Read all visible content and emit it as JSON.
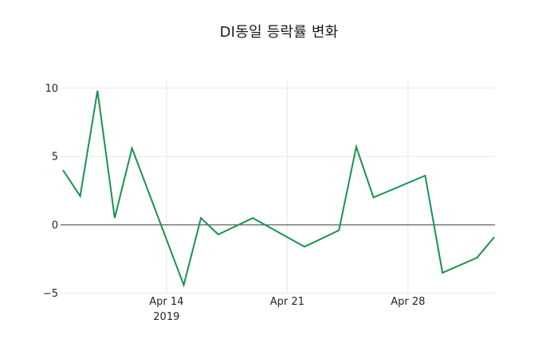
{
  "chart_data": {
    "type": "line",
    "title": "DI동일 등락률 변화",
    "xlabel": "",
    "ylabel": "",
    "legend": "none",
    "grid": true,
    "x_axis": {
      "tick_year": "2019",
      "ticks": [
        {
          "label": "Apr 14",
          "sublabel": "2019",
          "day_offset": 6
        },
        {
          "label": "Apr 21",
          "sublabel": "",
          "day_offset": 13
        },
        {
          "label": "Apr 28",
          "sublabel": "",
          "day_offset": 20
        }
      ],
      "range_days": [
        0,
        25
      ]
    },
    "y_axis": {
      "ticks": [
        10,
        5,
        0,
        -5
      ],
      "range": [
        -5.05,
        10.6
      ],
      "zero_line": true
    },
    "series": [
      {
        "color": "#17934f",
        "points": [
          {
            "date": "2019-04-08",
            "day_offset": 0,
            "value": 4.0
          },
          {
            "date": "2019-04-09",
            "day_offset": 1,
            "value": 2.1
          },
          {
            "date": "2019-04-10",
            "day_offset": 2,
            "value": 9.8
          },
          {
            "date": "2019-04-11",
            "day_offset": 3,
            "value": 0.5
          },
          {
            "date": "2019-04-12",
            "day_offset": 4,
            "value": 5.6
          },
          {
            "date": "2019-04-15",
            "day_offset": 7,
            "value": -4.4
          },
          {
            "date": "2019-04-16",
            "day_offset": 8,
            "value": 0.5
          },
          {
            "date": "2019-04-17",
            "day_offset": 9,
            "value": -0.7
          },
          {
            "date": "2019-04-18",
            "day_offset": 10,
            "value": -0.1
          },
          {
            "date": "2019-04-19",
            "day_offset": 11,
            "value": 0.5
          },
          {
            "date": "2019-04-22",
            "day_offset": 14,
            "value": -1.6
          },
          {
            "date": "2019-04-23",
            "day_offset": 15,
            "value": -1.0
          },
          {
            "date": "2019-04-24",
            "day_offset": 16,
            "value": -0.4
          },
          {
            "date": "2019-04-25",
            "day_offset": 17,
            "value": 5.7
          },
          {
            "date": "2019-04-26",
            "day_offset": 18,
            "value": 2.0
          },
          {
            "date": "2019-04-29",
            "day_offset": 21,
            "value": 3.6
          },
          {
            "date": "2019-04-30",
            "day_offset": 22,
            "value": -3.5
          },
          {
            "date": "2019-05-02",
            "day_offset": 24,
            "value": -2.4
          },
          {
            "date": "2019-05-03",
            "day_offset": 25,
            "value": -0.9
          }
        ]
      }
    ],
    "colors": {
      "line": "#17934f",
      "grid": "#e7e7e7",
      "zero_line": "#3a3a3a",
      "tick_text": "#262626",
      "title_text": "#1a1a1a",
      "background": "#ffffff"
    }
  }
}
